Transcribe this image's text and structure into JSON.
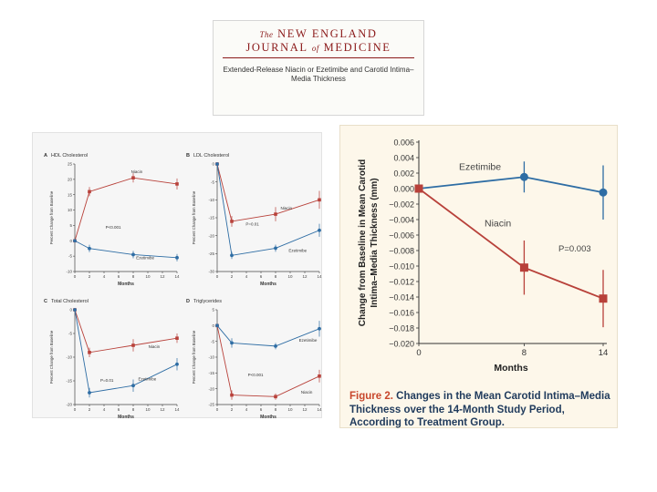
{
  "header": {
    "masthead_the": "The",
    "masthead_line1": "NEW ENGLAND",
    "masthead_journal": "JOURNAL",
    "masthead_of": "of",
    "masthead_medicine": "MEDICINE",
    "article_title": "Extended-Release Niacin or Ezetimibe and Carotid Intima–Media Thickness"
  },
  "colors": {
    "niacin": "#b8413a",
    "ezetimibe": "#2e6da4",
    "accent": "#c8472c"
  },
  "figure_caption": {
    "label": "Figure 2.",
    "text": "Changes in the Mean Carotid Intima–Media Thickness over the 14-Month Study Period, According to Treatment Group."
  },
  "chart_data": [
    {
      "id": "A",
      "type": "line",
      "title": "HDL Cholesterol",
      "xlabel": "Months",
      "ylabel": "Percent Change from Baseline",
      "xlim": [
        0,
        14
      ],
      "ylim": [
        -10,
        25
      ],
      "xticks": [
        0,
        2,
        4,
        6,
        8,
        10,
        12,
        14
      ],
      "yticks": [
        -10,
        -5,
        0,
        5,
        10,
        15,
        20,
        25
      ],
      "series": [
        {
          "name": "Niacin",
          "x": [
            0,
            2,
            8,
            14
          ],
          "values": [
            0,
            16,
            20.5,
            18.5
          ],
          "err": [
            0,
            1.5,
            1.5,
            1.8
          ]
        },
        {
          "name": "Ezetimibe",
          "x": [
            0,
            2,
            8,
            14
          ],
          "values": [
            0,
            -2.5,
            -4.5,
            -5.5
          ],
          "err": [
            0,
            1.2,
            1.2,
            1.2
          ]
        }
      ],
      "annotation": "P<0.001"
    },
    {
      "id": "B",
      "type": "line",
      "title": "LDL Cholesterol",
      "xlabel": "Months",
      "ylabel": "Percent Change from Baseline",
      "xlim": [
        0,
        14
      ],
      "ylim": [
        -30,
        0
      ],
      "xticks": [
        0,
        2,
        4,
        6,
        8,
        10,
        12,
        14
      ],
      "yticks": [
        -30,
        -25,
        -20,
        -15,
        -10,
        -5,
        0
      ],
      "series": [
        {
          "name": "Niacin",
          "x": [
            0,
            2,
            8,
            14
          ],
          "values": [
            0,
            -16,
            -14,
            -10
          ],
          "err": [
            0,
            1.5,
            2,
            2.5
          ]
        },
        {
          "name": "Ezetimibe",
          "x": [
            0,
            2,
            8,
            14
          ],
          "values": [
            0,
            -25.5,
            -23.5,
            -18.5
          ],
          "err": [
            0,
            1,
            1,
            1.8
          ]
        }
      ],
      "annotation": "P=0.01"
    },
    {
      "id": "C",
      "type": "line",
      "title": "Total Cholesterol",
      "xlabel": "Months",
      "ylabel": "Percent Change from Baseline",
      "xlim": [
        0,
        14
      ],
      "ylim": [
        -20,
        0
      ],
      "xticks": [
        0,
        2,
        4,
        6,
        8,
        10,
        12,
        14
      ],
      "yticks": [
        -20,
        -15,
        -10,
        -5,
        0
      ],
      "series": [
        {
          "name": "Niacin",
          "x": [
            0,
            2,
            8,
            14
          ],
          "values": [
            0,
            -9,
            -7.5,
            -6
          ],
          "err": [
            0,
            1,
            1.3,
            1
          ]
        },
        {
          "name": "Ezetimibe",
          "x": [
            0,
            2,
            8,
            14
          ],
          "values": [
            0,
            -17.5,
            -16,
            -11.5
          ],
          "err": [
            0,
            1,
            1.3,
            1.3
          ]
        }
      ],
      "annotation": "P=0.01"
    },
    {
      "id": "D",
      "type": "line",
      "title": "Triglycerides",
      "xlabel": "Months",
      "ylabel": "Percent Change from Baseline",
      "xlim": [
        0,
        14
      ],
      "ylim": [
        -25,
        5
      ],
      "xticks": [
        0,
        2,
        4,
        6,
        8,
        10,
        12,
        14
      ],
      "yticks": [
        -25,
        -20,
        -15,
        -10,
        -5,
        0,
        5
      ],
      "series": [
        {
          "name": "Niacin",
          "x": [
            0,
            2,
            8,
            14
          ],
          "values": [
            0,
            -22,
            -22.5,
            -16
          ],
          "err": [
            0,
            1.5,
            1,
            2
          ]
        },
        {
          "name": "Ezetimibe",
          "x": [
            0,
            2,
            8,
            14
          ],
          "values": [
            0,
            -5.5,
            -6.5,
            -1
          ],
          "err": [
            0,
            1.5,
            1,
            2.5
          ]
        }
      ],
      "annotation": "P<0.001"
    },
    {
      "id": "main",
      "type": "line",
      "title": "",
      "xlabel": "Months",
      "ylabel": "Change from Baseline in Mean Carotid Intima–Media Thickness (mm)",
      "xlim": [
        0,
        14
      ],
      "ylim": [
        -0.02,
        0.006
      ],
      "xticks": [
        0,
        8,
        14
      ],
      "yticks": [
        0.006,
        0.004,
        0.002,
        0.0,
        -0.002,
        -0.004,
        -0.006,
        -0.008,
        -0.01,
        -0.012,
        -0.014,
        -0.016,
        -0.018,
        -0.02
      ],
      "ytick_labels": [
        "0.006",
        "0.004",
        "0.002",
        "0.000",
        "−0.002",
        "−0.004",
        "−0.006",
        "−0.008",
        "−0.010",
        "−0.012",
        "−0.014",
        "−0.016",
        "−0.018",
        "−0.020"
      ],
      "series": [
        {
          "name": "Ezetimibe",
          "x": [
            0,
            8,
            14
          ],
          "values": [
            0,
            0.0015,
            -0.0005
          ],
          "err": [
            0,
            0.002,
            0.0035
          ]
        },
        {
          "name": "Niacin",
          "x": [
            0,
            8,
            14
          ],
          "values": [
            0,
            -0.0102,
            -0.0142
          ],
          "err": [
            0,
            0.0035,
            0.0037
          ]
        }
      ],
      "annotation": "P=0.003"
    }
  ]
}
